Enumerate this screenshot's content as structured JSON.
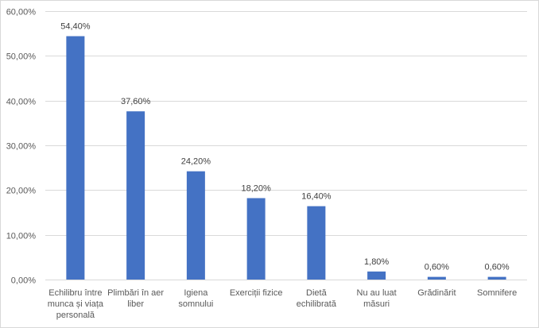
{
  "chart_data": {
    "type": "bar",
    "categories": [
      [
        "Echilibru între",
        "munca și viața",
        "personală"
      ],
      [
        "Plimbări în aer",
        "liber"
      ],
      [
        "Igiena",
        "somnului"
      ],
      [
        "Exerciții fizice"
      ],
      [
        "Dietă",
        "echilibrată"
      ],
      [
        "Nu au luat",
        "măsuri"
      ],
      [
        "Grădinărit"
      ],
      [
        "Somnifere"
      ]
    ],
    "values": [
      54.4,
      37.6,
      24.2,
      18.2,
      16.4,
      1.8,
      0.6,
      0.6
    ],
    "data_labels": [
      "54,40%",
      "37,60%",
      "24,20%",
      "18,20%",
      "16,40%",
      "1,80%",
      "0,60%",
      "0,60%"
    ],
    "yticks": [
      0,
      10,
      20,
      30,
      40,
      50,
      60
    ],
    "ytick_labels": [
      "0,00%",
      "10,00%",
      "20,00%",
      "30,00%",
      "40,00%",
      "50,00%",
      "60,00%"
    ],
    "ylim": [
      0,
      60
    ],
    "grid": true,
    "bar_color": "#4472c4",
    "grid_color": "#d9d9d9"
  }
}
